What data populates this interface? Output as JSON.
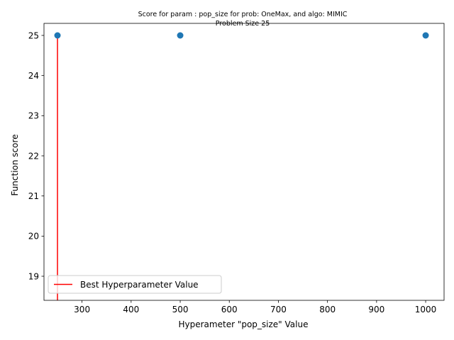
{
  "chart_data": {
    "type": "scatter",
    "title_line1": "Score for param : pop_size for prob: OneMax, and algo: MIMIC",
    "title_line2": "Problem Size 25",
    "xlabel": "Hyperameter \"pop_size\" Value",
    "ylabel": "Function score",
    "xlim": [
      222.5,
      1037.5
    ],
    "ylim": [
      18.4,
      25.3
    ],
    "xticks": [
      300,
      400,
      500,
      600,
      700,
      800,
      900,
      1000
    ],
    "yticks": [
      19,
      20,
      21,
      22,
      23,
      24,
      25
    ],
    "points": [
      {
        "x": 250,
        "y": 25
      },
      {
        "x": 500,
        "y": 25
      },
      {
        "x": 1000,
        "y": 25
      }
    ],
    "best_line": {
      "x": 250,
      "y_from": 18.4,
      "y_to": 25
    },
    "legend": {
      "label": "Best Hyperparameter Value",
      "placement": "lower-left"
    },
    "grid": false,
    "colors": {
      "points": "#1f77b4",
      "best_line": "#ff0000",
      "axes": "#000000"
    }
  }
}
